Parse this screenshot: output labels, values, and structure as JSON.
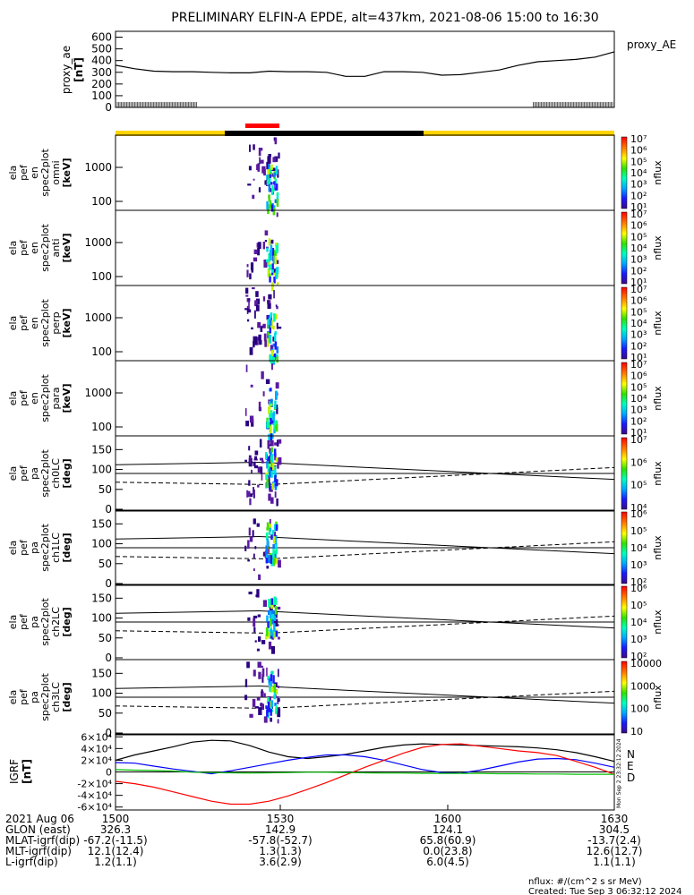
{
  "title": "PRELIMINARY ELFIN-A EPDE, alt=437km, 2021-08-06 15:00 to 16:30",
  "colors": {
    "yellow": "#ffd400",
    "red": "#ff0000",
    "blue": "#0000ff",
    "green": "#00c000",
    "black": "#000000"
  },
  "panels": [
    {
      "id": "proxy_ae",
      "ylabel": [
        "proxy_ae",
        "[nT]"
      ],
      "side_label": "proxy_AE",
      "ticks": [
        "0",
        "100",
        "200",
        "300",
        "400",
        "500",
        "600"
      ]
    },
    {
      "id": "omni",
      "ylabel": [
        "ela",
        "pef",
        "en",
        "spec2plot",
        "omni",
        "[keV]"
      ],
      "ticks": [
        "100",
        "1000"
      ],
      "cb_label": "nflux"
    },
    {
      "id": "anti",
      "ylabel": [
        "ela",
        "pef",
        "en",
        "spec2plot",
        "anti",
        "[keV]"
      ],
      "ticks": [
        "100",
        "1000"
      ],
      "cb_label": "nflux"
    },
    {
      "id": "perp",
      "ylabel": [
        "ela",
        "pef",
        "en",
        "spec2plot",
        "perp",
        "[keV]"
      ],
      "ticks": [
        "100",
        "1000"
      ],
      "cb_label": "nflux"
    },
    {
      "id": "para",
      "ylabel": [
        "ela",
        "pef",
        "en",
        "spec2plot",
        "para",
        "[keV]"
      ],
      "ticks": [
        "100",
        "1000"
      ],
      "cb_label": "nflux"
    },
    {
      "id": "ch0",
      "ylabel": [
        "ela",
        "pef",
        "pa",
        "spec2plot",
        "ch0LC",
        "[deg]"
      ],
      "ticks": [
        "0",
        "50",
        "100",
        "150"
      ],
      "cb_label": "nflux"
    },
    {
      "id": "ch1",
      "ylabel": [
        "ela",
        "pef",
        "pa",
        "spec2plot",
        "ch1LC",
        "[deg]"
      ],
      "ticks": [
        "0",
        "50",
        "100",
        "150"
      ],
      "cb_label": "nflux"
    },
    {
      "id": "ch2",
      "ylabel": [
        "ela",
        "pef",
        "pa",
        "spec2plot",
        "ch2LC",
        "[deg]"
      ],
      "ticks": [
        "0",
        "50",
        "100",
        "150"
      ],
      "cb_label": "nflux"
    },
    {
      "id": "ch3",
      "ylabel": [
        "ela",
        "pef",
        "pa",
        "spec2plot",
        "ch3LC",
        "[deg]"
      ],
      "ticks": [
        "0",
        "50",
        "100",
        "150"
      ],
      "cb_label": "nflux"
    },
    {
      "id": "igrf",
      "ylabel": [
        "IGRF",
        "[nT]"
      ],
      "ticks": [
        "-6×10⁴",
        "-4×10⁴",
        "-2×10⁴",
        "0",
        "2×10⁴",
        "4×10⁴",
        "6×10⁴"
      ],
      "legend": [
        "N",
        "E",
        "D"
      ]
    }
  ],
  "colorbars": [
    [
      "10¹",
      "10²",
      "10³",
      "10⁴",
      "10⁵",
      "10⁶",
      "10⁷"
    ],
    [
      "10¹",
      "10²",
      "10³",
      "10⁴",
      "10⁵",
      "10⁶",
      "10⁷"
    ],
    [
      "10¹",
      "10²",
      "10³",
      "10⁴",
      "10⁵",
      "10⁶",
      "10⁷"
    ],
    [
      "10¹",
      "10²",
      "10³",
      "10⁴",
      "10⁵",
      "10⁶",
      "10⁷"
    ],
    [
      "10⁴",
      "10⁵",
      "10⁶",
      "10⁷"
    ],
    [
      "10²",
      "10³",
      "10⁴",
      "10⁵",
      "10⁶"
    ],
    [
      "10²",
      "10³",
      "10⁴",
      "10⁵",
      "10⁶"
    ],
    [
      "10",
      "100",
      "1000",
      "10000"
    ]
  ],
  "xaxis": {
    "rows": [
      {
        "label": "2021 Aug 06",
        "values": [
          "1500",
          "1530",
          "1600",
          "1630"
        ]
      },
      {
        "label": "GLON (east)",
        "values": [
          "326.3",
          "142.9",
          "124.1",
          "304.5"
        ]
      },
      {
        "label": "MLAT-igrf(dip)",
        "values": [
          "-67.2(-11.5)",
          "-57.8(-52.7)",
          "65.8(60.9)",
          "-13.7(2.4)"
        ]
      },
      {
        "label": "MLT-igrf(dip)",
        "values": [
          "12.1(12.4)",
          "1.3(1.3)",
          "0.0(23.8)",
          "12.6(12.7)"
        ]
      },
      {
        "label": "L-igrf(dip)",
        "values": [
          "1.2(1.1)",
          "3.6(2.9)",
          "6.0(4.5)",
          "1.1(1.1)"
        ]
      }
    ]
  },
  "footer": {
    "units": "nflux: #/(cm^2 s sr MeV)",
    "created": "Created: Tue Sep  3 06:32:12 2024",
    "side_stamp": "Mon Sep  2 23:32:12 2024"
  },
  "chart_data": [
    {
      "type": "line",
      "title": "proxy_ae",
      "ylabel": "proxy_ae [nT]",
      "ylim": [
        0,
        650
      ],
      "x": [
        1500,
        1505,
        1510,
        1515,
        1520,
        1525,
        1530,
        1535,
        1540,
        1545,
        1550,
        1555,
        1560,
        1565,
        1570,
        1575,
        1580,
        1585,
        1590,
        1595,
        1600,
        1605,
        1610,
        1615,
        1620,
        1625,
        1630
      ],
      "series": [
        {
          "name": "proxy_AE",
          "values": [
            360,
            330,
            310,
            305,
            305,
            300,
            295,
            295,
            310,
            305,
            305,
            300,
            265,
            265,
            305,
            305,
            300,
            275,
            280,
            300,
            320,
            360,
            390,
            400,
            410,
            430,
            475
          ]
        }
      ]
    },
    {
      "type": "line",
      "title": "IGRF",
      "ylabel": "IGRF [nT]",
      "ylim": [
        -65000,
        65000
      ],
      "x": [
        1500,
        1505,
        1510,
        1515,
        1520,
        1525,
        1530,
        1535,
        1540,
        1545,
        1550,
        1555,
        1560,
        1565,
        1570,
        1575,
        1580,
        1585,
        1590,
        1595,
        1600,
        1605,
        1610,
        1615,
        1620,
        1625,
        1630
      ],
      "series": [
        {
          "name": "N",
          "values": [
            20000,
            29000,
            36000,
            43000,
            51000,
            54000,
            53000,
            45000,
            34000,
            26000,
            23000,
            26000,
            30000,
            36000,
            42000,
            46000,
            48000,
            47000,
            46000,
            45000,
            44000,
            43000,
            41000,
            38000,
            33000,
            26000,
            18000
          ]
        },
        {
          "name": "E",
          "values": [
            16000,
            15000,
            10000,
            5000,
            1000,
            -3000,
            2000,
            8000,
            14000,
            20000,
            25000,
            29000,
            29000,
            26000,
            20000,
            12000,
            4000,
            -1000,
            -2000,
            3000,
            10000,
            17000,
            22000,
            23000,
            21000,
            15000,
            8000
          ]
        },
        {
          "name": "D",
          "values": [
            -16000,
            -20000,
            -26000,
            -34000,
            -42000,
            -50000,
            -55000,
            -55000,
            -50000,
            -41000,
            -30000,
            -18000,
            -5000,
            8000,
            20000,
            32000,
            42000,
            47000,
            48000,
            44000,
            40000,
            36000,
            33000,
            28000,
            18000,
            8000,
            -4000
          ]
        },
        {
          "values": [
            4000,
            3000,
            2500,
            1500,
            -500,
            -1000,
            -1500,
            -2000,
            -1500,
            -1000,
            -500,
            -500,
            -1000,
            -1500,
            -2000,
            -2000,
            -2500,
            -2500,
            -2500,
            -2500,
            -3000,
            -3000,
            -3500,
            -3500,
            -4000,
            -4000,
            -4000
          ]
        }
      ]
    }
  ]
}
